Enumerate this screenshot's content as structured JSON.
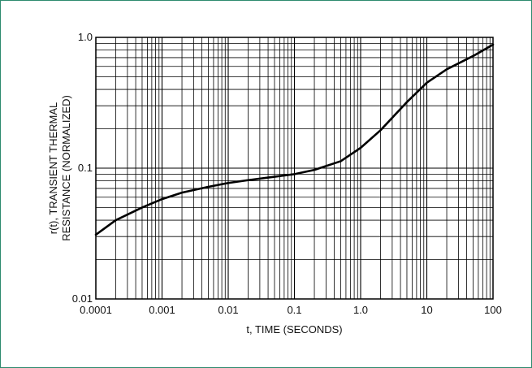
{
  "colors": {
    "frame_border": "#2e8a6e",
    "grid": "#000000",
    "curve": "#000000",
    "text": "#111111"
  },
  "chart_data": {
    "type": "line",
    "x_scale": "log",
    "y_scale": "log",
    "xlim": [
      0.0001,
      100
    ],
    "ylim": [
      0.01,
      1.0
    ],
    "grid": true,
    "xlabel": "t, TIME (SECONDS)",
    "ylabel_lines": [
      "r(t), TRANSIENT THERMAL",
      "RESISTANCE (NORMALIZED)"
    ],
    "x_tick_labels": [
      "0.0001",
      "0.001",
      "0.01",
      "0.1",
      "1.0",
      "10",
      "100"
    ],
    "y_tick_labels": [
      "0.01",
      "0.1",
      "1.0"
    ],
    "series": [
      {
        "x": [
          0.0001,
          0.0002,
          0.0005,
          0.001,
          0.002,
          0.005,
          0.01,
          0.02,
          0.05,
          0.1,
          0.2,
          0.5,
          1.0,
          2.0,
          5.0,
          10,
          20,
          50,
          100
        ],
        "y": [
          0.031,
          0.04,
          0.05,
          0.058,
          0.065,
          0.072,
          0.077,
          0.081,
          0.086,
          0.09,
          0.097,
          0.113,
          0.143,
          0.195,
          0.32,
          0.45,
          0.57,
          0.72,
          0.88
        ]
      }
    ]
  }
}
